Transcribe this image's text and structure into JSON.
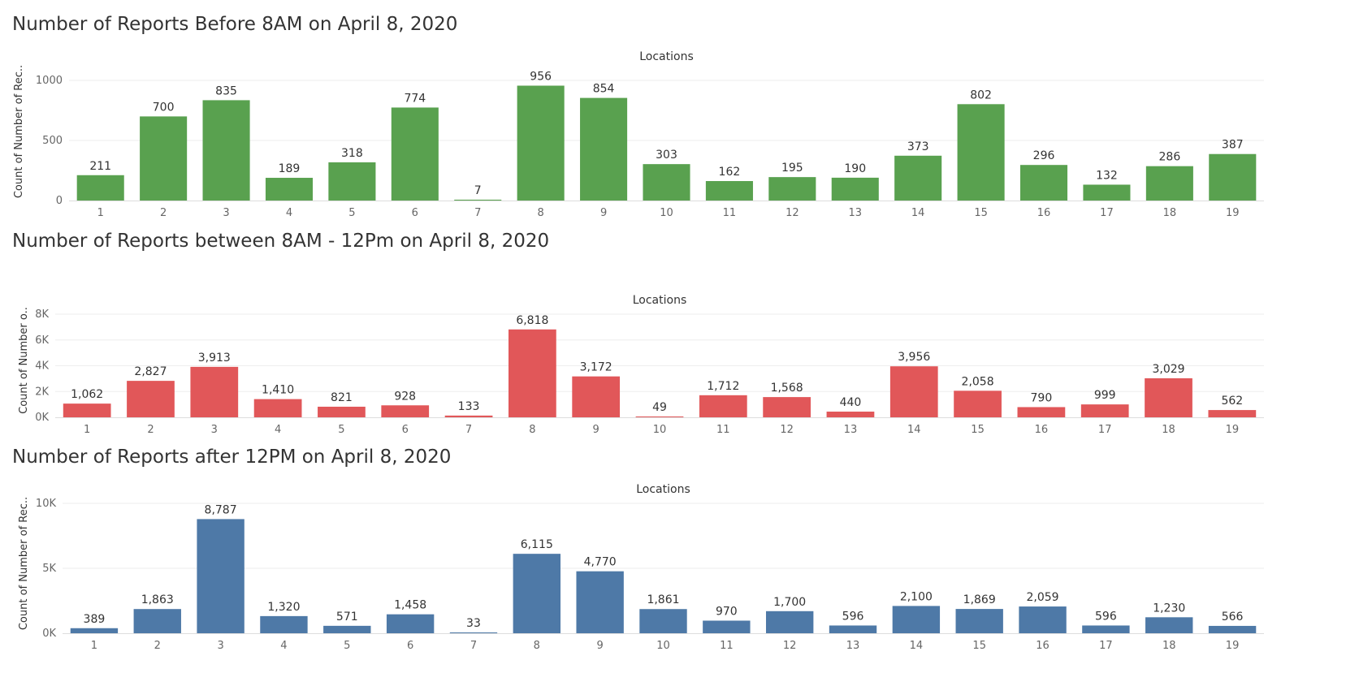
{
  "chart_data": [
    {
      "type": "bar",
      "title": "Number of Reports Before 8AM on April 8, 2020",
      "header": "Locations",
      "ylabel": "Count of Number of Rec..",
      "categories": [
        "1",
        "2",
        "3",
        "4",
        "5",
        "6",
        "7",
        "8",
        "9",
        "10",
        "11",
        "12",
        "13",
        "14",
        "15",
        "16",
        "17",
        "18",
        "19"
      ],
      "values": [
        211,
        700,
        835,
        189,
        318,
        774,
        7,
        956,
        854,
        303,
        162,
        195,
        190,
        373,
        802,
        296,
        132,
        286,
        387
      ],
      "value_labels": [
        "211",
        "700",
        "835",
        "189",
        "318",
        "774",
        "7",
        "956",
        "854",
        "303",
        "162",
        "195",
        "190",
        "373",
        "802",
        "296",
        "132",
        "286",
        "387"
      ],
      "ylim": [
        0,
        1060
      ],
      "yticks": [
        0,
        500,
        1000
      ],
      "ytick_labels": [
        "0",
        "500",
        "1000"
      ],
      "color": "#59A14F",
      "grid": true,
      "legend": "none"
    },
    {
      "type": "bar",
      "title": "Number of Reports between 8AM - 12Pm on April 8, 2020",
      "header": "Locations",
      "ylabel": "Count of Number o..",
      "categories": [
        "1",
        "2",
        "3",
        "4",
        "5",
        "6",
        "7",
        "8",
        "9",
        "10",
        "11",
        "12",
        "13",
        "14",
        "15",
        "16",
        "17",
        "18",
        "19"
      ],
      "values": [
        1062,
        2827,
        3913,
        1410,
        821,
        928,
        133,
        6818,
        3172,
        49,
        1712,
        1568,
        440,
        3956,
        2058,
        790,
        999,
        3029,
        562
      ],
      "value_labels": [
        "1,062",
        "2,827",
        "3,913",
        "1,410",
        "821",
        "928",
        "133",
        "6,818",
        "3,172",
        "49",
        "1,712",
        "1,568",
        "440",
        "3,956",
        "2,058",
        "790",
        "999",
        "3,029",
        "562"
      ],
      "ylim": [
        0,
        8000
      ],
      "yticks": [
        0,
        2000,
        4000,
        6000,
        8000
      ],
      "ytick_labels": [
        "0K",
        "2K",
        "4K",
        "6K",
        "8K"
      ],
      "color": "#E15759",
      "grid": true,
      "legend": "none"
    },
    {
      "type": "bar",
      "title": "Number of Reports after 12PM on April 8, 2020",
      "header": "Locations",
      "ylabel": "Count of Number of Rec..",
      "categories": [
        "1",
        "2",
        "3",
        "4",
        "5",
        "6",
        "7",
        "8",
        "9",
        "10",
        "11",
        "12",
        "13",
        "14",
        "15",
        "16",
        "17",
        "18",
        "19"
      ],
      "values": [
        389,
        1863,
        8787,
        1320,
        571,
        1458,
        33,
        6115,
        4770,
        1861,
        970,
        1700,
        596,
        2100,
        1869,
        2059,
        596,
        1230,
        566
      ],
      "value_labels": [
        "389",
        "1,863",
        "8,787",
        "1,320",
        "571",
        "1,458",
        "33",
        "6,115",
        "4,770",
        "1,861",
        "970",
        "1,700",
        "596",
        "2,100",
        "1,869",
        "2,059",
        "596",
        "1,230",
        "566"
      ],
      "ylim": [
        0,
        10000
      ],
      "yticks": [
        0,
        5000,
        10000
      ],
      "ytick_labels": [
        "0K",
        "5K",
        "10K"
      ],
      "color": "#4E79A7",
      "grid": true,
      "legend": "none"
    }
  ]
}
